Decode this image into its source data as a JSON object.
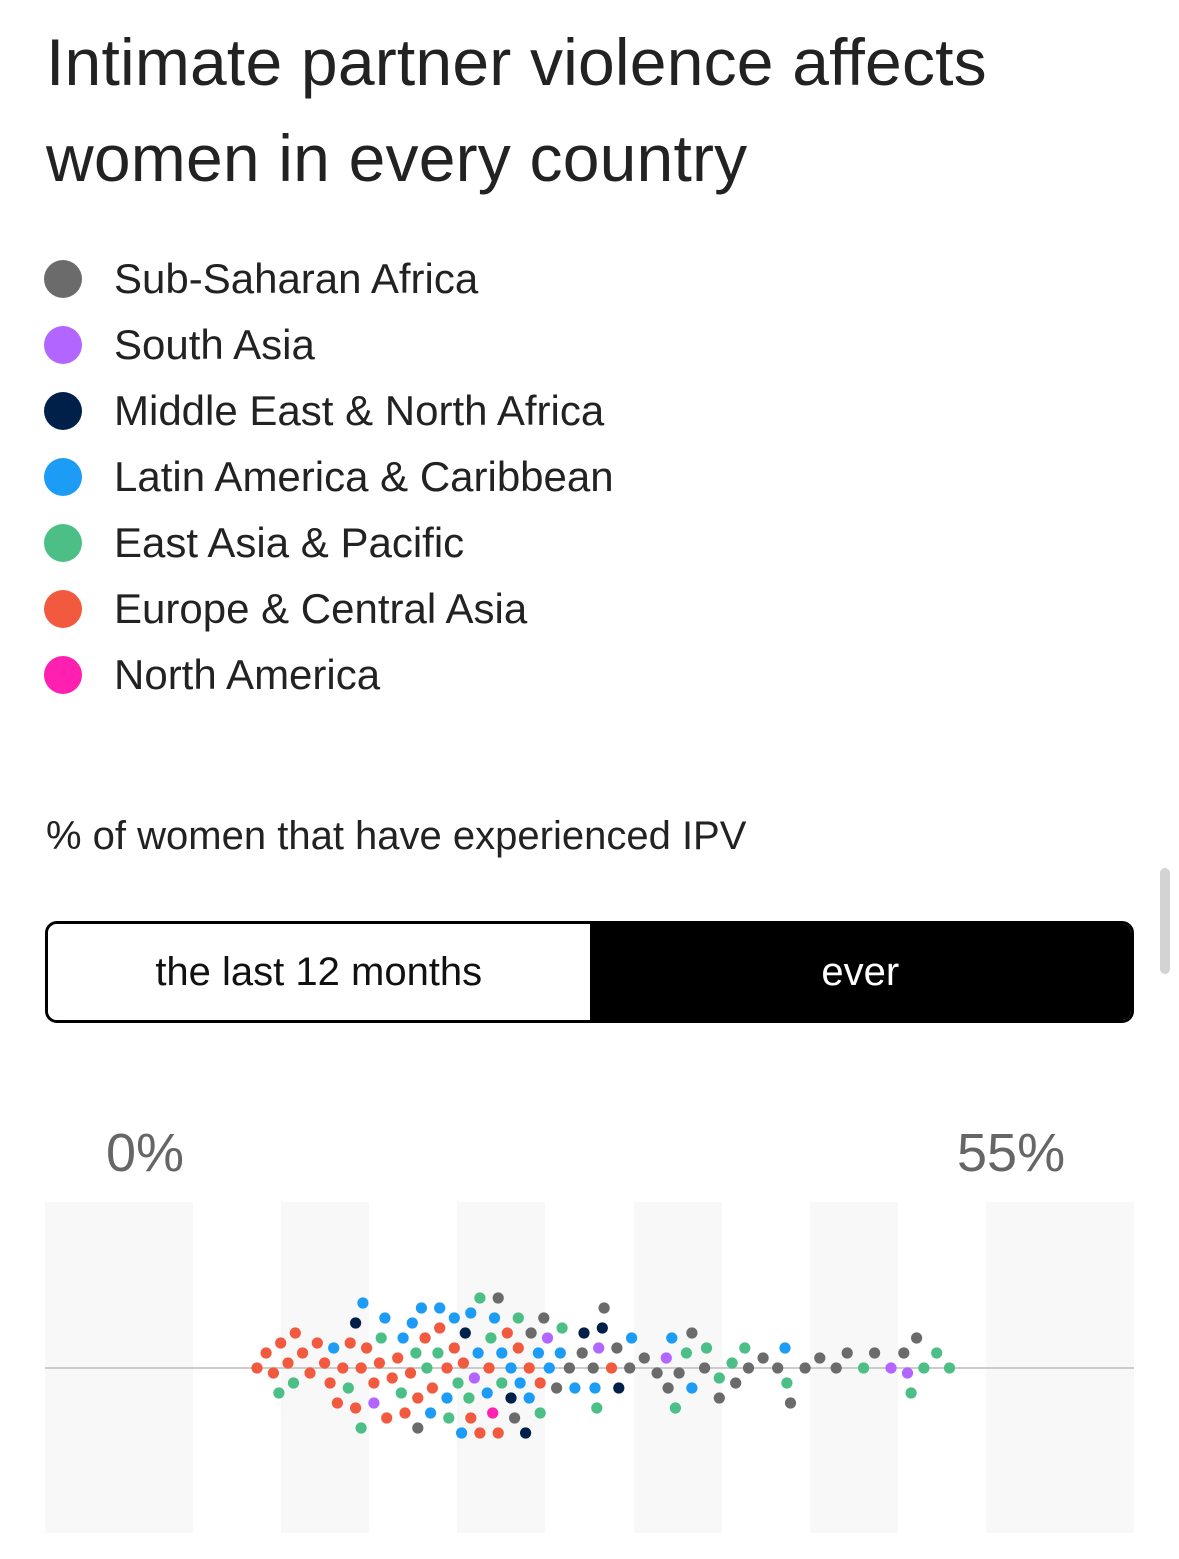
{
  "title": "Intimate partner violence affects women in every country",
  "legend": {
    "items": [
      {
        "label": "Sub-Saharan Africa",
        "color": "#6b6b6b"
      },
      {
        "label": "South Asia",
        "color": "#b266ff"
      },
      {
        "label": "Middle East & North Africa",
        "color": "#00204a"
      },
      {
        "label": "Latin America & Caribbean",
        "color": "#1c9cf5"
      },
      {
        "label": "East Asia & Pacific",
        "color": "#4cbf87"
      },
      {
        "label": "Europe & Central Asia",
        "color": "#f15a3f"
      },
      {
        "label": "North America",
        "color": "#ff1fb0"
      }
    ]
  },
  "subtitle": "% of women that have experienced IPV",
  "toggle": {
    "options": [
      "the last 12 months",
      "ever"
    ],
    "selected": "ever"
  },
  "chart_data": {
    "type": "scatter",
    "layout": "beeswarm",
    "x_label_min": "0%",
    "x_label_max": "55%",
    "xlim": [
      0,
      55
    ],
    "x_unit": "%",
    "grid": "alternating vertical bands",
    "series": [
      {
        "region": "Europe & Central Asia",
        "color": "#f15a3f",
        "values": [
          11.6,
          12.1,
          12.5,
          12.9,
          13.3,
          13.7,
          14.1,
          14.5,
          14.9,
          15.3,
          15.6,
          16.0,
          16.3,
          16.7,
          17.0,
          17.3,
          17.6,
          18.0,
          18.3,
          18.7,
          19.0,
          19.3,
          19.7,
          20.0,
          20.4,
          20.8,
          21.2,
          21.6,
          22.0,
          22.4,
          22.9,
          23.3,
          23.8,
          24.3,
          24.8,
          25.3,
          25.9,
          26.5,
          27.1,
          31.0
        ]
      },
      {
        "region": "Latin America & Caribbean",
        "color": "#1c9cf5",
        "values": [
          15.8,
          17.4,
          18.6,
          19.6,
          20.1,
          20.6,
          21.1,
          21.6,
          22.0,
          22.4,
          22.8,
          23.3,
          23.7,
          24.2,
          24.6,
          25.0,
          25.5,
          26.0,
          26.5,
          27.0,
          27.6,
          28.2,
          29.0,
          30.1,
          32.1,
          34.3,
          35.4,
          40.5
        ]
      },
      {
        "region": "East Asia & Pacific",
        "color": "#4cbf87",
        "values": [
          12.8,
          13.6,
          16.6,
          17.3,
          18.4,
          19.5,
          20.3,
          20.9,
          21.5,
          22.1,
          22.6,
          23.2,
          23.8,
          24.4,
          25.0,
          25.9,
          27.1,
          28.3,
          30.2,
          34.5,
          35.1,
          36.2,
          36.9,
          37.6,
          38.3,
          40.6,
          44.8,
          47.4,
          48.1,
          48.8,
          49.5
        ]
      },
      {
        "region": "Sub-Saharan Africa",
        "color": "#6b6b6b",
        "values": [
          20.4,
          24.8,
          25.7,
          26.6,
          27.3,
          28.0,
          28.7,
          29.4,
          30.0,
          30.6,
          31.3,
          32.0,
          32.8,
          33.5,
          34.1,
          34.7,
          35.4,
          36.1,
          36.9,
          37.8,
          38.5,
          39.3,
          40.1,
          40.8,
          41.6,
          42.4,
          43.3,
          43.9,
          45.4,
          47.0,
          47.7
        ]
      },
      {
        "region": "South Asia",
        "color": "#b266ff",
        "values": [
          18.0,
          23.5,
          27.5,
          30.3,
          34.0,
          46.3,
          47.2
        ]
      },
      {
        "region": "Middle East & North Africa",
        "color": "#00204a",
        "values": [
          17.0,
          23.0,
          25.5,
          26.3,
          29.5,
          30.5,
          31.4
        ]
      },
      {
        "region": "North America",
        "color": "#ff1fb0",
        "values": [
          24.5
        ]
      }
    ]
  }
}
